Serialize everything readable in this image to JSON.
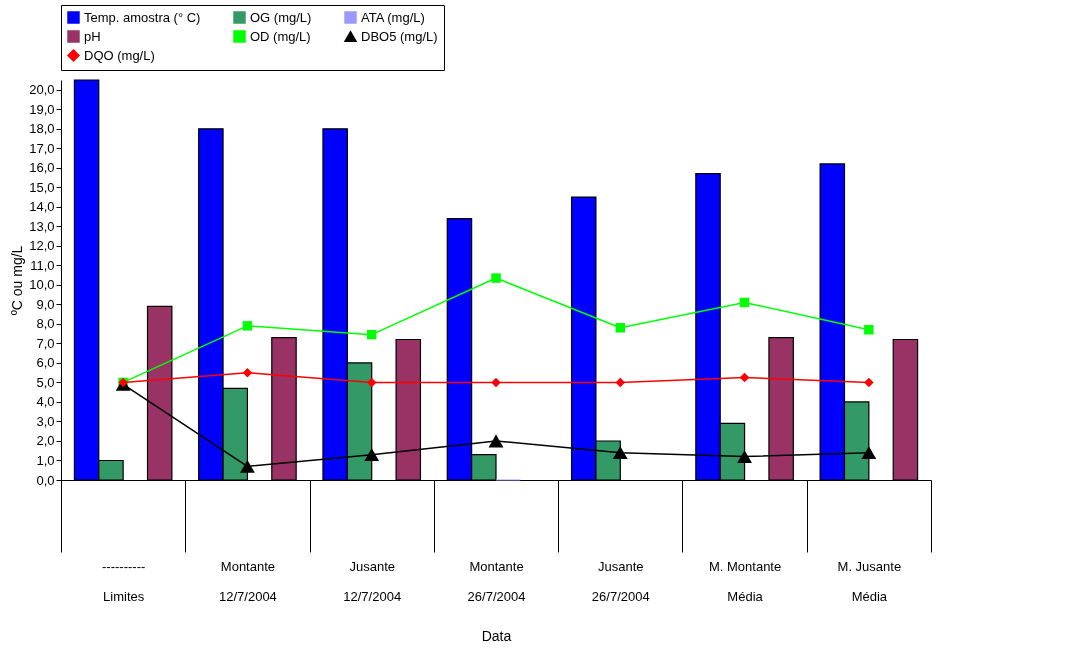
{
  "chart_data": {
    "type": "bar",
    "xlabel": "Data",
    "ylabel": "ºC ou mg/L",
    "categories": [
      "----------\nLimites",
      "Montante\n12/7/2004",
      "Jusante\n12/7/2004",
      "Montante\n26/7/2004",
      "Jusante\n26/7/2004",
      "M. Montante\nMédia",
      "M. Jusante\nMédia"
    ],
    "series": [
      {
        "name": "Temp. amostra (° C)",
        "color": "#0000ff",
        "values": [
          20.5,
          18.0,
          18.0,
          13.4,
          14.5,
          15.7,
          16.2
        ]
      },
      {
        "name": "OG (mg/L)",
        "color": "#339966",
        "values": [
          1.0,
          4.7,
          6.0,
          1.3,
          2.0,
          2.9,
          4.0
        ]
      },
      {
        "name": "ATA (mg/L)",
        "color": "#9999ff",
        "values": [
          null,
          null,
          null,
          0,
          null,
          null,
          null
        ]
      },
      {
        "name": "pH",
        "color": "#993366",
        "values": [
          8.9,
          7.3,
          7.2,
          null,
          null,
          7.3,
          7.2
        ]
      },
      {
        "name": "OD (mg/L)",
        "type": "line",
        "marker": "square",
        "color": "#00ff00",
        "values": [
          5.0,
          7.9,
          7.45,
          10.35,
          7.8,
          9.1,
          7.7
        ]
      },
      {
        "name": "DBO5 (mg/L)",
        "type": "line",
        "marker": "triangle",
        "color": "#000000",
        "values": [
          4.9,
          0.7,
          1.3,
          2.0,
          1.4,
          1.2,
          1.4
        ]
      },
      {
        "name": "DQO (mg/L)",
        "type": "line",
        "marker": "diamond",
        "color": "#ff0000",
        "values": [
          5.0,
          5.5,
          5.0,
          5.0,
          5.0,
          5.25,
          5.0
        ]
      }
    ],
    "ylim": [
      0,
      20.5
    ],
    "yticks": [
      {
        "value": 0,
        "label": "0,0"
      },
      {
        "value": 1,
        "label": "1,0"
      },
      {
        "value": 2,
        "label": "2,0"
      },
      {
        "value": 3,
        "label": "3,0"
      },
      {
        "value": 4,
        "label": "4,0"
      },
      {
        "value": 5,
        "label": "5,0"
      },
      {
        "value": 6,
        "label": "6,0"
      },
      {
        "value": 7,
        "label": "7,0"
      },
      {
        "value": 8,
        "label": "8,0"
      },
      {
        "value": 9,
        "label": "9,0"
      },
      {
        "value": 10,
        "label": "10,0"
      },
      {
        "value": 11,
        "label": "11,0"
      },
      {
        "value": 12,
        "label": "12,0"
      },
      {
        "value": 13,
        "label": "13,0"
      },
      {
        "value": 14,
        "label": "14,0"
      },
      {
        "value": 15,
        "label": "15,0"
      },
      {
        "value": 16,
        "label": "16,0"
      },
      {
        "value": 17,
        "label": "17,0"
      },
      {
        "value": 18,
        "label": "18,0"
      },
      {
        "value": 19,
        "label": "19,0"
      },
      {
        "value": 20,
        "label": "20,0"
      }
    ],
    "grid": false,
    "legend": "top"
  }
}
